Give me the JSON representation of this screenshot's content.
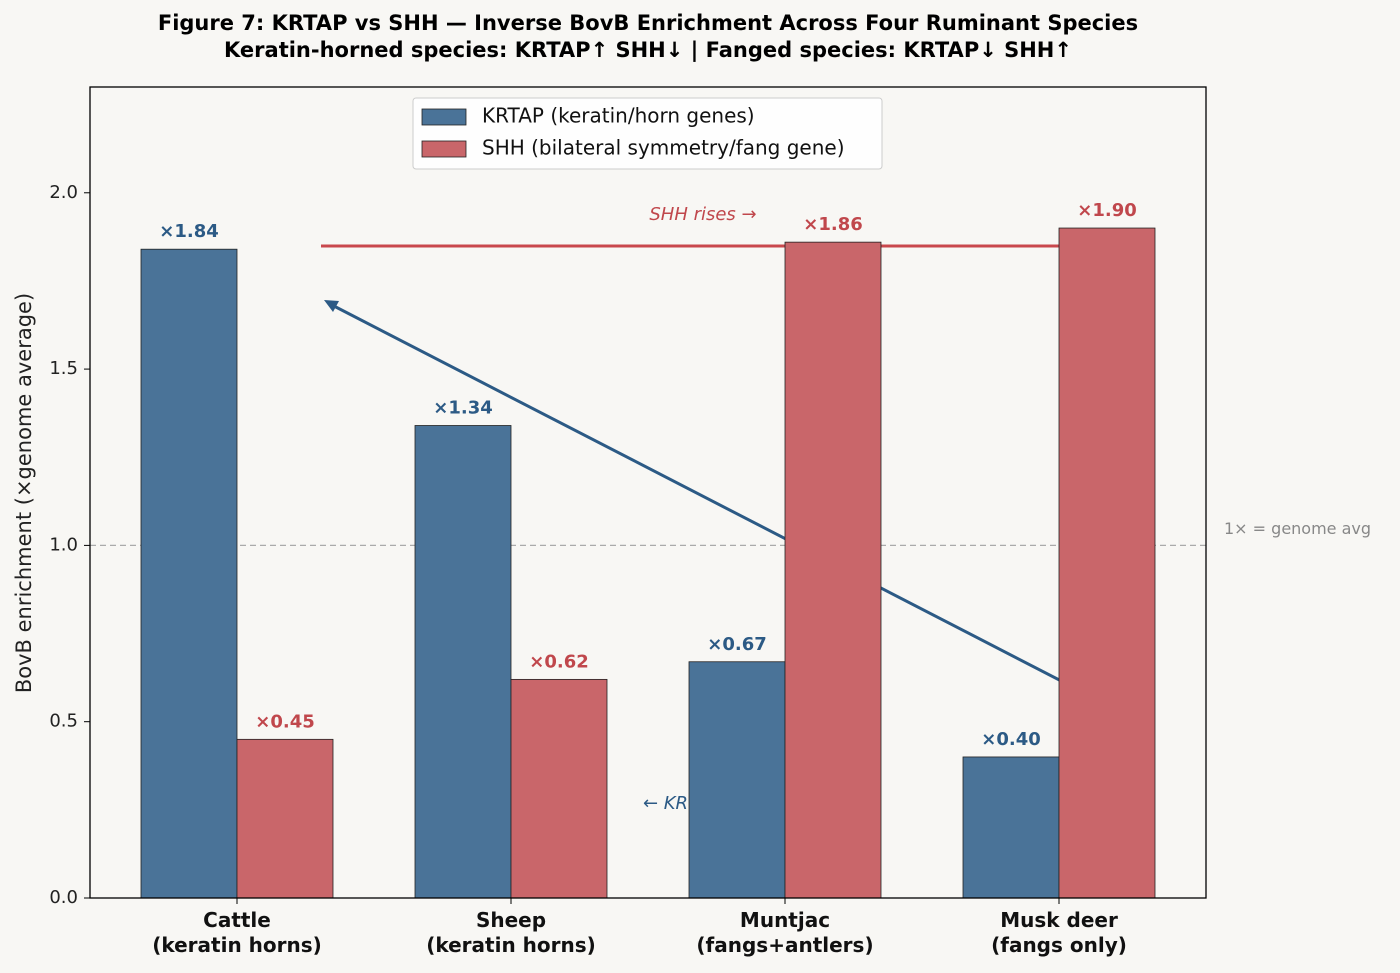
{
  "chart_data": {
    "type": "bar",
    "title": "Figure 7: KRTAP vs SHH — Inverse BovB Enrichment Across Four Ruminant Species",
    "subtitle": "Keratin-horned species: KRTAP↑ SHH↓ | Fanged species: KRTAP↓ SHH↑",
    "ylabel": "BovB enrichment (×genome average)",
    "categories": [
      "Cattle\n(keratin horns)",
      "Sheep\n(keratin horns)",
      "Muntjac\n(fangs+antlers)",
      "Musk deer\n(fangs only)"
    ],
    "series": [
      {
        "name": "KRTAP (keratin/horn genes)",
        "color": "#4a7398",
        "label_color": "#2c5a85",
        "values": [
          1.84,
          1.34,
          0.67,
          0.4
        ],
        "value_labels": [
          "×1.84",
          "×1.34",
          "×0.67",
          "×0.40"
        ]
      },
      {
        "name": "SHH (bilateral symmetry/fang gene)",
        "color": "#c9666a",
        "label_color": "#c0474c",
        "values": [
          0.45,
          0.62,
          1.86,
          1.9
        ],
        "value_labels": [
          "×0.45",
          "×0.62",
          "×1.86",
          "×1.90"
        ]
      }
    ],
    "ylim": [
      0,
      2.3
    ],
    "yticks": [
      {
        "value": 0,
        "label": "0.0"
      },
      0.5,
      {
        "value": 1,
        "label": "1.0"
      },
      1.5,
      {
        "value": 2,
        "label": "2.0"
      }
    ],
    "reference_line": {
      "value": 1,
      "label": "1× = genome avg"
    },
    "annotations": [
      "SHH rises →",
      "← KRTAP falls"
    ],
    "legend": "upper center"
  }
}
